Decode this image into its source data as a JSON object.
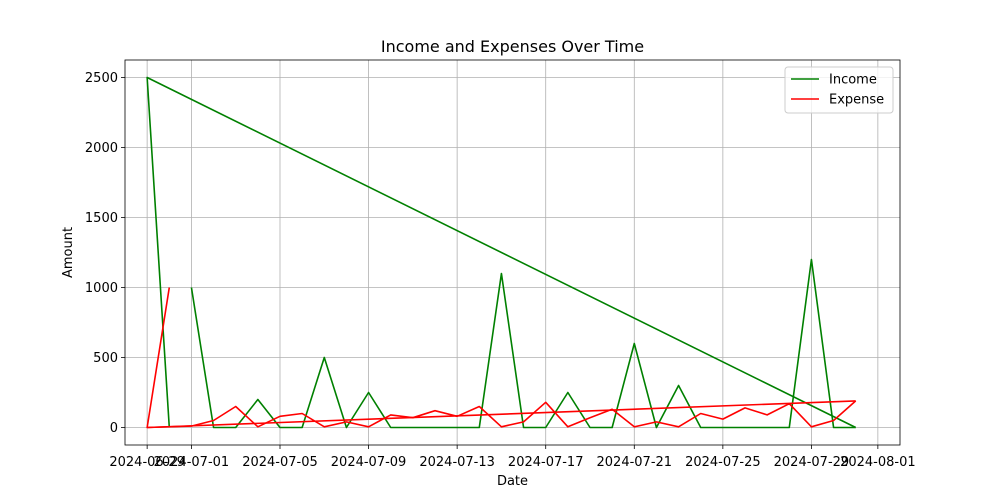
{
  "chart_data": {
    "type": "line",
    "title": "Income and Expenses Over Time",
    "xlabel": "Date",
    "ylabel": "Amount",
    "legend_position": "top-right",
    "grid": true,
    "x_axis_type": "date",
    "xlim": [
      "2024-06-28",
      "2024-08-02"
    ],
    "ylim": [
      -125,
      2625
    ],
    "x_tick_labels": [
      "2024-06-29",
      "2024-07-01",
      "2024-07-05",
      "2024-07-09",
      "2024-07-13",
      "2024-07-17",
      "2024-07-21",
      "2024-07-25",
      "2024-07-29",
      "2024-08-01"
    ],
    "y_ticks": [
      0,
      500,
      1000,
      1500,
      2000,
      2500
    ],
    "series": [
      {
        "name": "Income",
        "color": "#008000",
        "x": [
          "2024-07-31",
          "2024-06-29",
          "2024-06-30",
          "2024-07-01",
          "2024-07-02",
          "2024-07-03",
          "2024-07-04",
          "2024-07-05",
          "2024-07-06",
          "2024-07-07",
          "2024-07-08",
          "2024-07-09",
          "2024-07-10",
          "2024-07-11",
          "2024-07-12",
          "2024-07-13",
          "2024-07-14",
          "2024-07-15",
          "2024-07-16",
          "2024-07-17",
          "2024-07-18",
          "2024-07-19",
          "2024-07-20",
          "2024-07-21",
          "2024-07-22",
          "2024-07-23",
          "2024-07-24",
          "2024-07-25",
          "2024-07-26",
          "2024-07-27",
          "2024-07-28",
          "2024-07-29",
          "2024-07-30",
          "2024-07-31"
        ],
        "y": [
          0,
          2500,
          0,
          1000,
          0,
          0,
          200,
          0,
          0,
          500,
          0,
          250,
          0,
          0,
          0,
          0,
          0,
          1100,
          0,
          0,
          250,
          0,
          0,
          600,
          0,
          300,
          0,
          0,
          0,
          0,
          0,
          1200,
          0,
          0
        ],
        "break_after_index": 2
      },
      {
        "name": "Expense",
        "color": "#ff0000",
        "x": [
          "2024-06-30",
          "2024-06-29",
          "2024-07-01",
          "2024-07-02",
          "2024-07-03",
          "2024-07-04",
          "2024-07-05",
          "2024-07-06",
          "2024-07-07",
          "2024-07-08",
          "2024-07-09",
          "2024-07-10",
          "2024-07-11",
          "2024-07-12",
          "2024-07-13",
          "2024-07-14",
          "2024-07-15",
          "2024-07-16",
          "2024-07-17",
          "2024-07-18",
          "2024-07-19",
          "2024-07-20",
          "2024-07-21",
          "2024-07-22",
          "2024-07-23",
          "2024-07-24",
          "2024-07-25",
          "2024-07-26",
          "2024-07-27",
          "2024-07-28",
          "2024-07-29",
          "2024-07-30",
          "2024-07-31"
        ],
        "y": [
          1000,
          0,
          10,
          50,
          150,
          5,
          80,
          100,
          5,
          40,
          5,
          90,
          70,
          120,
          80,
          150,
          5,
          40,
          180,
          5,
          70,
          130,
          5,
          40,
          5,
          100,
          60,
          140,
          90,
          170,
          5,
          50,
          190
        ],
        "trend_line": {
          "from": [
            "2024-06-29",
            0
          ],
          "to": [
            "2024-07-31",
            190
          ]
        }
      }
    ]
  }
}
